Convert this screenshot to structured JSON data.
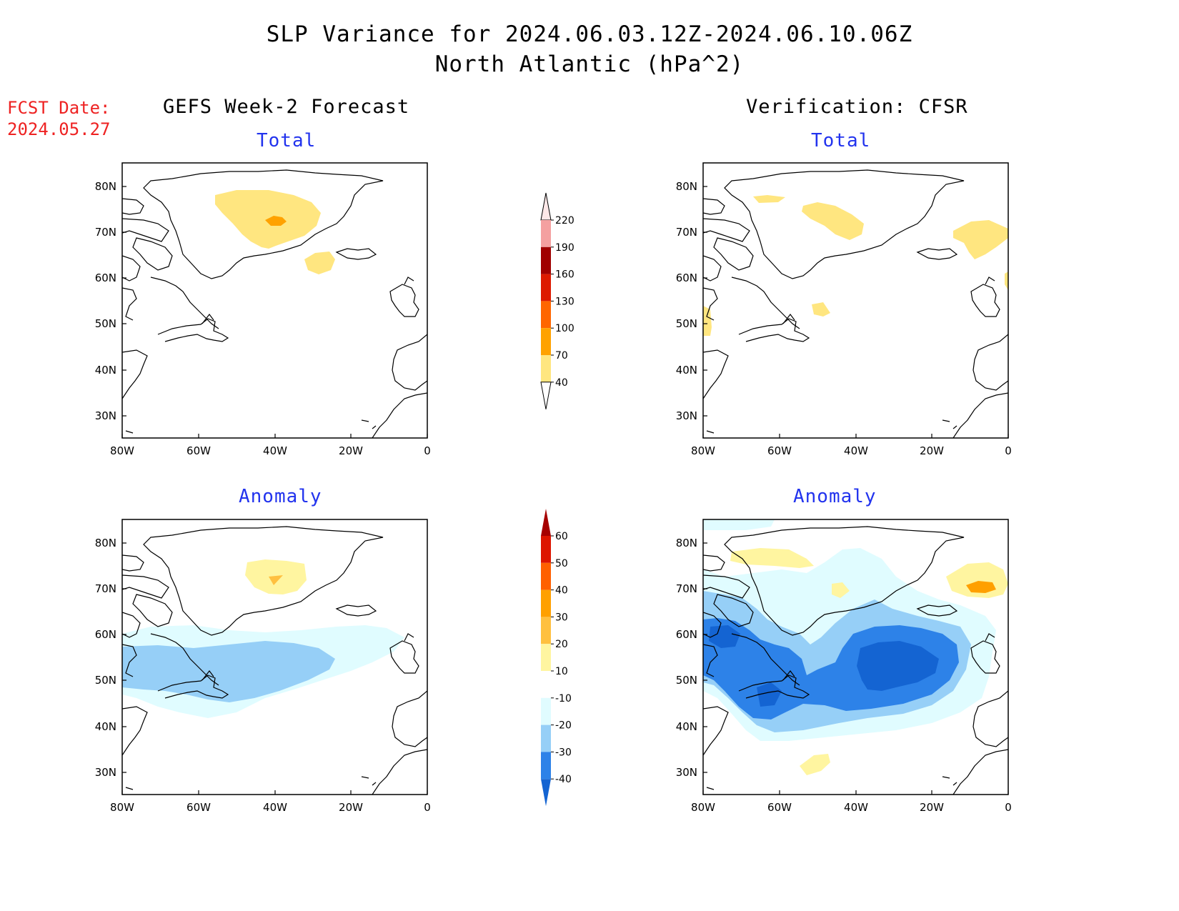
{
  "header": {
    "title_line1": "SLP Variance for 2024.06.03.12Z-2024.06.10.06Z",
    "title_line2": "North Atlantic (hPa^2)"
  },
  "fcst": {
    "label": "FCST Date:",
    "date": "2024.05.27"
  },
  "columns": {
    "left": "GEFS Week-2 Forecast",
    "right": "Verification: CFSR"
  },
  "panels": {
    "total_label": "Total",
    "anomaly_label": "Anomaly"
  },
  "axes": {
    "lat_ticks": [
      "80N",
      "70N",
      "60N",
      "50N",
      "40N",
      "30N"
    ],
    "lon_ticks": [
      "80W",
      "60W",
      "40W",
      "20W",
      "0"
    ]
  },
  "colorbar_total": {
    "labels": [
      "220",
      "190",
      "160",
      "130",
      "100",
      "70",
      "40"
    ],
    "colors": [
      "#fde8e8",
      "#f4a0a0",
      "#a00000",
      "#dd1a00",
      "#ff6600",
      "#ffa200",
      "#ffe680"
    ]
  },
  "colorbar_anomaly": {
    "labels": [
      "60",
      "50",
      "40",
      "30",
      "20",
      "10",
      "-10",
      "-20",
      "-30",
      "-40"
    ],
    "colors": [
      "#a60000",
      "#dd1500",
      "#ff6000",
      "#ffa000",
      "#ffc040",
      "#fff5a0",
      "#ffffff",
      "#e0fcff",
      "#96cff7",
      "#2d82e8",
      "#1464d2"
    ]
  }
}
